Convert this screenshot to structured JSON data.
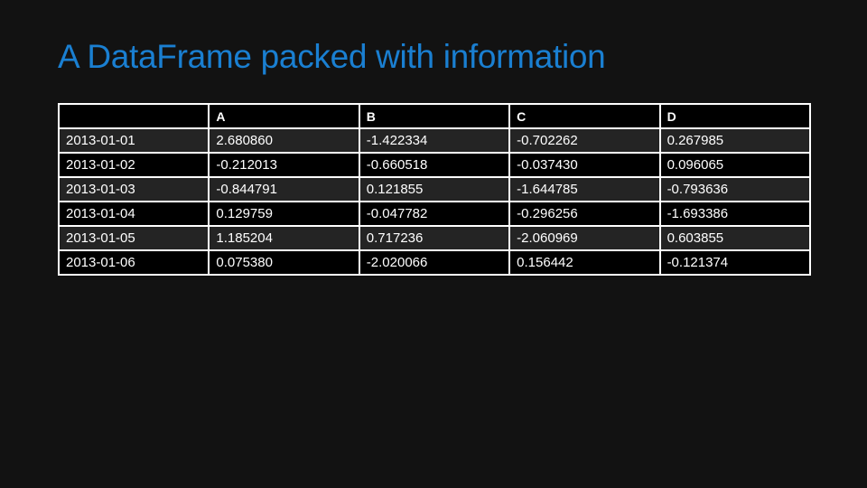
{
  "slide": {
    "title": "A DataFrame packed with information",
    "title_color": "#1a7fd1",
    "background_color": "#121212"
  },
  "table": {
    "columns": [
      "",
      "A",
      "B",
      "C",
      "D"
    ],
    "rows": [
      [
        "2013-01-01",
        "2.680860",
        "-1.422334",
        "-0.702262",
        "0.267985"
      ],
      [
        "2013-01-02",
        "-0.212013",
        "-0.660518",
        "-0.037430",
        "0.096065"
      ],
      [
        "2013-01-03",
        "-0.844791",
        "0.121855",
        "-1.644785",
        "-0.793636"
      ],
      [
        "2013-01-04",
        "0.129759",
        "-0.047782",
        "-0.296256",
        "-1.693386"
      ],
      [
        "2013-01-05",
        "1.185204",
        "0.717236",
        "-2.060969",
        "0.603855"
      ],
      [
        "2013-01-06",
        "0.075380",
        "-2.020066",
        "0.156442",
        "-0.121374"
      ]
    ]
  }
}
